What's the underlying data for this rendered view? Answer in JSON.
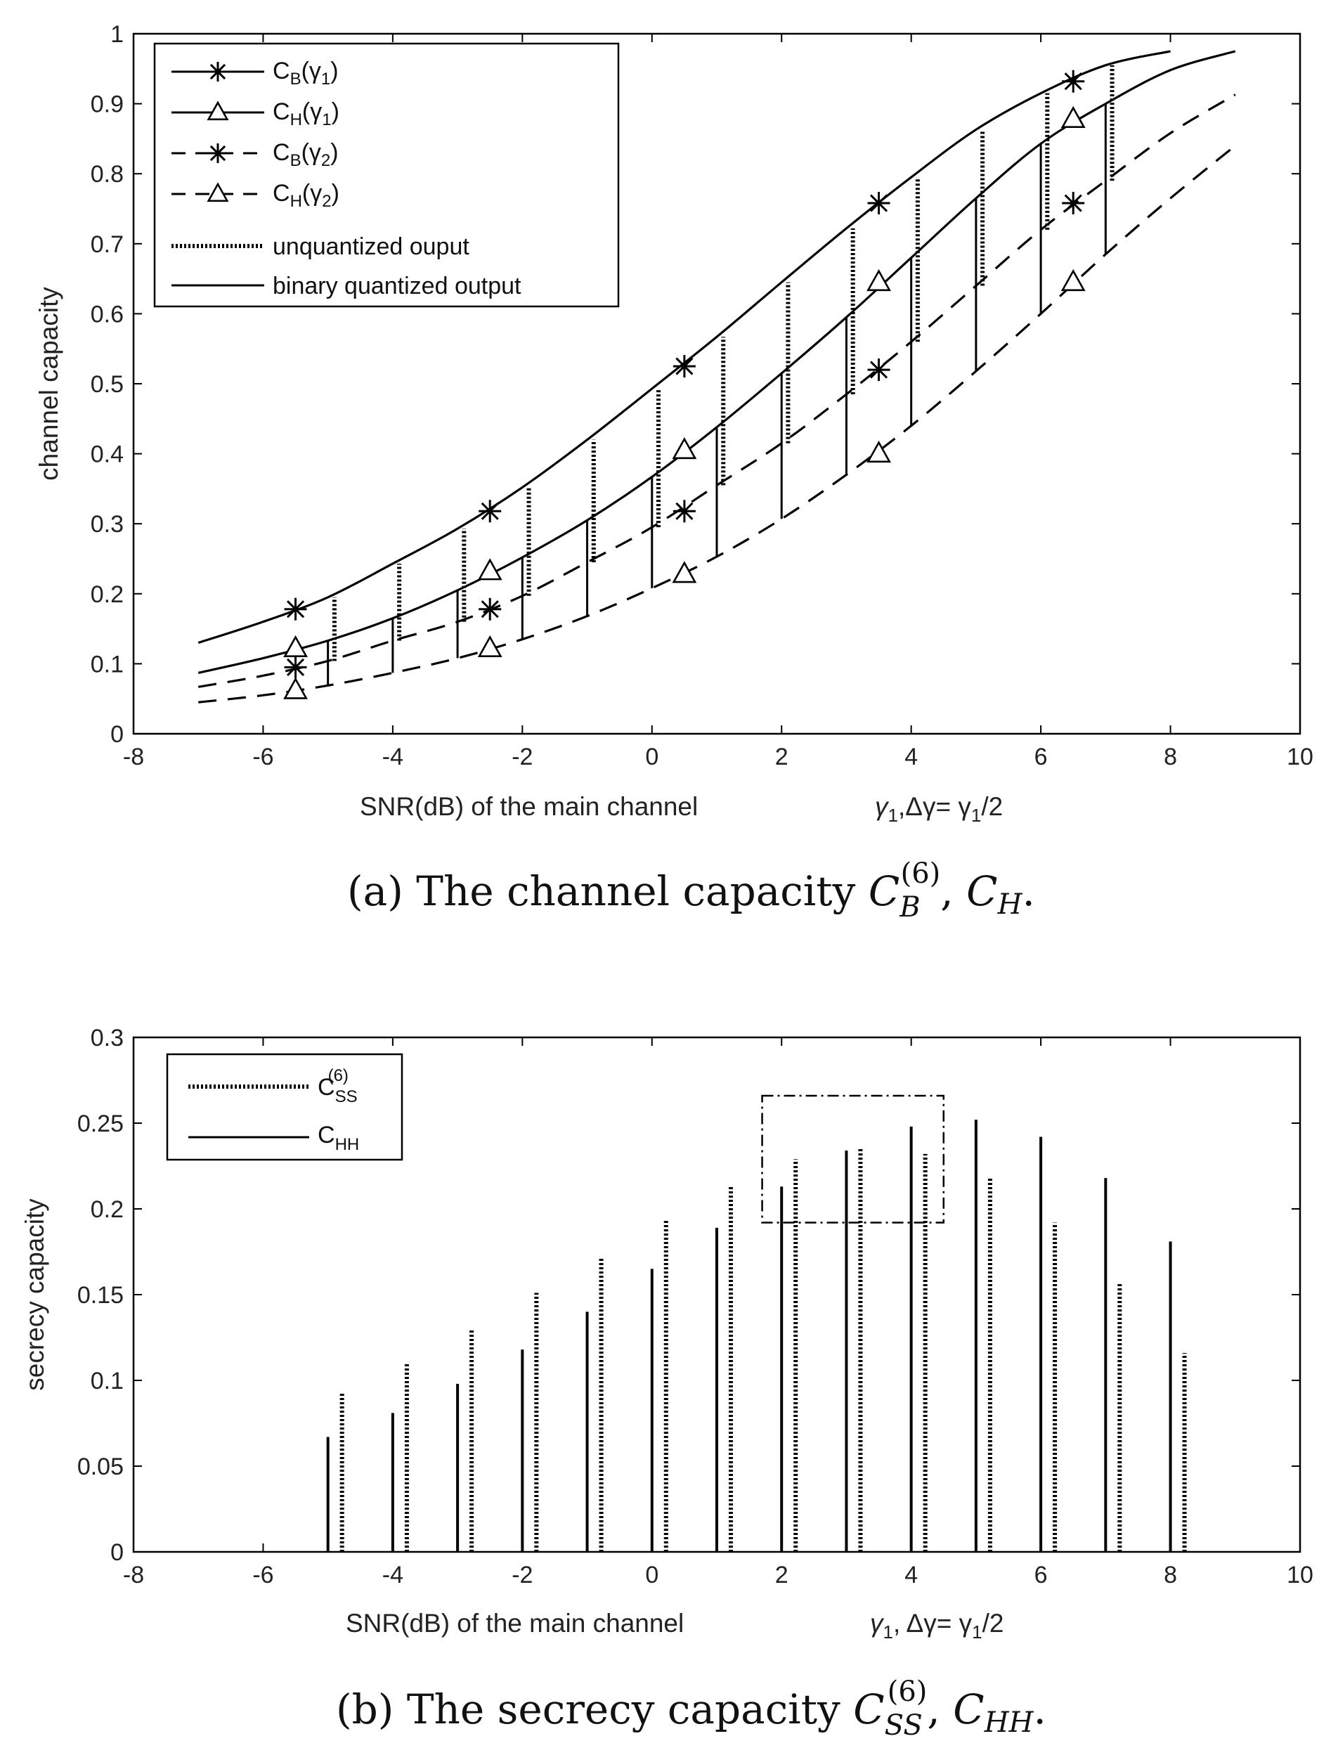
{
  "chart_data": [
    {
      "id": "a",
      "type": "line",
      "xlim": [
        -8,
        10
      ],
      "ylim": [
        0,
        1
      ],
      "xticks": [
        "-8",
        "-6",
        "-4",
        "-2",
        "0",
        "2",
        "4",
        "6",
        "8",
        "10"
      ],
      "yticks": [
        "0",
        "0.1",
        "0.2",
        "0.3",
        "0.4",
        "0.5",
        "0.6",
        "0.7",
        "0.8",
        "0.9",
        "1"
      ],
      "xlabel": "SNR(dB) of the main channel",
      "xlabel_math": {
        "g": "γ",
        "sub1": "1",
        "mid": ",Δγ= γ",
        "sub2": "1",
        "tail": "/2"
      },
      "ylabel": "channel capacity",
      "legend_position": "top-left",
      "legend": [
        {
          "key": "cb1",
          "main": "C",
          "sub": "B",
          "mid": "(γ",
          "sub2": "1",
          "end": ")",
          "line": "solid",
          "marker": "star"
        },
        {
          "key": "ch1",
          "main": "C",
          "sub": "H",
          "mid": "(γ",
          "sub2": "1",
          "end": ")",
          "line": "solid",
          "marker": "triangle"
        },
        {
          "key": "cb2",
          "main": "C",
          "sub": "B",
          "mid": "(γ",
          "sub2": "2",
          "end": ")",
          "line": "dashed",
          "marker": "star"
        },
        {
          "key": "ch2",
          "main": "C",
          "sub": "H",
          "mid": "(γ",
          "sub2": "2",
          "end": ")",
          "line": "dashed",
          "marker": "triangle"
        },
        {
          "key": "unq",
          "text": "unquantized ouput",
          "line": "dotted"
        },
        {
          "key": "bin",
          "text": "binary quantized output",
          "line": "solid"
        }
      ],
      "series": [
        {
          "name": "C_B(γ1)",
          "style": "solid",
          "x": [
            -7,
            -6,
            -5,
            -4,
            -3,
            -2,
            -1,
            0,
            1,
            2,
            3,
            4,
            5,
            6,
            7,
            8
          ],
          "y": [
            0.13,
            0.16,
            0.195,
            0.243,
            0.293,
            0.352,
            0.42,
            0.493,
            0.567,
            0.645,
            0.722,
            0.795,
            0.863,
            0.915,
            0.955,
            0.975
          ]
        },
        {
          "name": "C_H(γ1)",
          "style": "solid",
          "x": [
            -7,
            -6,
            -5,
            -4,
            -3,
            -2,
            -1,
            0,
            1,
            2,
            3,
            4,
            5,
            6,
            7,
            8,
            9
          ],
          "y": [
            0.087,
            0.108,
            0.133,
            0.165,
            0.205,
            0.252,
            0.305,
            0.367,
            0.438,
            0.515,
            0.595,
            0.68,
            0.765,
            0.843,
            0.9,
            0.948,
            0.975
          ]
        },
        {
          "name": "C_B(γ2)",
          "style": "dashed",
          "x": [
            -7,
            -6,
            -5,
            -4,
            -3,
            -2,
            -1,
            0,
            1,
            2,
            3,
            4,
            5,
            6,
            7,
            8,
            9
          ],
          "y": [
            0.067,
            0.083,
            0.104,
            0.133,
            0.16,
            0.197,
            0.245,
            0.295,
            0.355,
            0.415,
            0.485,
            0.56,
            0.64,
            0.72,
            0.79,
            0.858,
            0.913
          ]
        },
        {
          "name": "C_H(γ2)",
          "style": "dashed",
          "x": [
            -7,
            -6,
            -5,
            -4,
            -3,
            -2,
            -1,
            0,
            1,
            2,
            3,
            4,
            5,
            6,
            7,
            8,
            9
          ],
          "y": [
            0.045,
            0.055,
            0.069,
            0.087,
            0.108,
            0.135,
            0.168,
            0.208,
            0.253,
            0.307,
            0.37,
            0.44,
            0.518,
            0.6,
            0.685,
            0.765,
            0.84
          ]
        }
      ],
      "markers": {
        "cb1": {
          "x": [
            -5.5,
            -2.5,
            0.5,
            3.5,
            6.5
          ],
          "y": [
            0.178,
            0.318,
            0.525,
            0.758,
            0.932
          ]
        },
        "ch1": {
          "x": [
            -5.5,
            -2.5,
            0.5,
            3.5,
            6.5
          ],
          "y": [
            0.122,
            0.232,
            0.405,
            0.645,
            0.878
          ]
        },
        "cb2": {
          "x": [
            -5.5,
            -2.5,
            0.5,
            3.5,
            6.5
          ],
          "y": [
            0.095,
            0.178,
            0.318,
            0.52,
            0.758
          ]
        },
        "ch2": {
          "x": [
            -5.5,
            -2.5,
            0.5,
            3.5,
            6.5
          ],
          "y": [
            0.062,
            0.122,
            0.228,
            0.4,
            0.645
          ]
        }
      },
      "unquantized_gaps": [
        {
          "x": -4.9,
          "y0": 0.104,
          "y1": 0.195
        },
        {
          "x": -3.9,
          "y0": 0.133,
          "y1": 0.243
        },
        {
          "x": -2.9,
          "y0": 0.16,
          "y1": 0.293
        },
        {
          "x": -1.9,
          "y0": 0.197,
          "y1": 0.352
        },
        {
          "x": -0.9,
          "y0": 0.245,
          "y1": 0.42
        },
        {
          "x": 0.1,
          "y0": 0.295,
          "y1": 0.493
        },
        {
          "x": 1.1,
          "y0": 0.355,
          "y1": 0.567
        },
        {
          "x": 2.1,
          "y0": 0.415,
          "y1": 0.645
        },
        {
          "x": 3.1,
          "y0": 0.485,
          "y1": 0.722
        },
        {
          "x": 4.1,
          "y0": 0.56,
          "y1": 0.795
        },
        {
          "x": 5.1,
          "y0": 0.64,
          "y1": 0.863
        },
        {
          "x": 6.1,
          "y0": 0.72,
          "y1": 0.915
        },
        {
          "x": 7.1,
          "y0": 0.79,
          "y1": 0.955
        }
      ],
      "quantized_gaps": [
        {
          "x": -5,
          "y0": 0.069,
          "y1": 0.133
        },
        {
          "x": -4,
          "y0": 0.087,
          "y1": 0.165
        },
        {
          "x": -3,
          "y0": 0.108,
          "y1": 0.205
        },
        {
          "x": -2,
          "y0": 0.135,
          "y1": 0.252
        },
        {
          "x": -1,
          "y0": 0.168,
          "y1": 0.305
        },
        {
          "x": 0,
          "y0": 0.208,
          "y1": 0.367
        },
        {
          "x": 1,
          "y0": 0.253,
          "y1": 0.438
        },
        {
          "x": 2,
          "y0": 0.307,
          "y1": 0.515
        },
        {
          "x": 3,
          "y0": 0.37,
          "y1": 0.595
        },
        {
          "x": 4,
          "y0": 0.44,
          "y1": 0.68
        },
        {
          "x": 5,
          "y0": 0.518,
          "y1": 0.765
        },
        {
          "x": 6,
          "y0": 0.6,
          "y1": 0.843
        },
        {
          "x": 7,
          "y0": 0.685,
          "y1": 0.9
        }
      ],
      "caption": {
        "prefix": "(a)  The channel capacity ",
        "sym1": "C",
        "sub1": "B",
        "sup1": "(6)",
        "sep": ", ",
        "sym2": "C",
        "sub2": "H",
        "end": "."
      }
    },
    {
      "id": "b",
      "type": "bar",
      "xlim": [
        -8,
        10
      ],
      "ylim": [
        0,
        0.3
      ],
      "xticks": [
        "-8",
        "-6",
        "-4",
        "-2",
        "0",
        "2",
        "4",
        "6",
        "8",
        "10"
      ],
      "yticks": [
        "0",
        "0.05",
        "0.1",
        "0.15",
        "0.2",
        "0.25",
        "0.3"
      ],
      "xlabel": "SNR(dB)  of the main channel",
      "xlabel_math": {
        "g": "γ",
        "sub1": "1",
        "mid": ",  Δγ= γ",
        "sub2": "1",
        "tail": "/2"
      },
      "ylabel": "secrecy capacity",
      "legend_position": "top-left",
      "legend": [
        {
          "key": "css",
          "main": "C",
          "sub": "SS",
          "sup": "(6)",
          "line": "dotted"
        },
        {
          "key": "chh",
          "main": "C",
          "sub": "HH",
          "line": "solid"
        }
      ],
      "categories": [
        -5,
        -4,
        -3,
        -2,
        -1,
        0,
        1,
        2,
        3,
        4,
        5,
        6,
        7,
        8
      ],
      "series": [
        {
          "name": "C_HH",
          "style": "solid",
          "values": [
            0.067,
            0.081,
            0.098,
            0.118,
            0.14,
            0.165,
            0.189,
            0.213,
            0.234,
            0.248,
            0.252,
            0.242,
            0.218,
            0.181
          ]
        },
        {
          "name": "C_SS^(6)",
          "style": "dotted",
          "values": [
            0.093,
            0.11,
            0.13,
            0.151,
            0.172,
            0.193,
            0.213,
            0.229,
            0.235,
            0.232,
            0.218,
            0.192,
            0.157,
            0.116
          ]
        }
      ],
      "annotation_box": {
        "x0": 1.7,
        "x1": 4.5,
        "y0": 0.192,
        "y1": 0.266,
        "style": "dashdot"
      },
      "caption": {
        "prefix": "(b)  The secrecy capacity ",
        "sym1": "C",
        "sub1": "SS",
        "sup1": "(6)",
        "sep": ", ",
        "sym2": "C",
        "sub2": "HH",
        "end": "."
      }
    }
  ]
}
